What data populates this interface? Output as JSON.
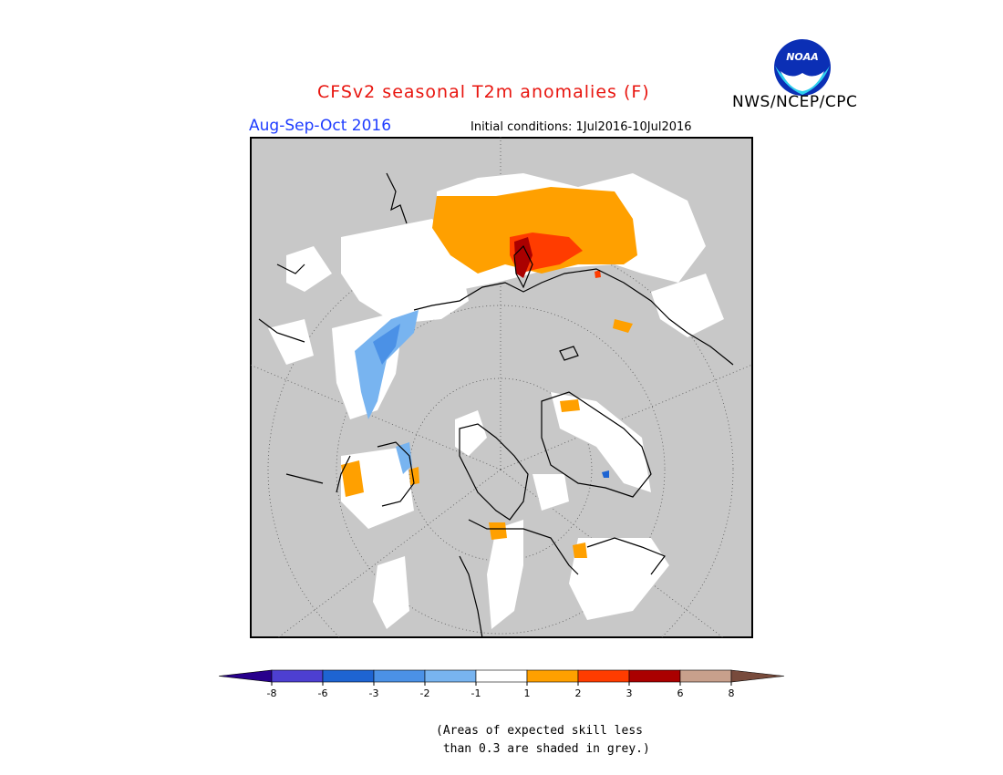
{
  "header": {
    "title": "CFSv2 seasonal T2m anomalies (F)",
    "period": "Aug-Sep-Oct 2016",
    "initial_conditions": "Initial conditions: 1Jul2016-10Jul2016",
    "agency": "NWS/NCEP/CPC",
    "logo_text": "NOAA"
  },
  "legend": {
    "bins": [
      {
        "color": "#28008c"
      },
      {
        "color": "#4d3fd1"
      },
      {
        "color": "#1e64d2"
      },
      {
        "color": "#4b91e6"
      },
      {
        "color": "#78b4f0"
      },
      {
        "color": "#ffffff"
      },
      {
        "color": "#ffa000"
      },
      {
        "color": "#ff3c00"
      },
      {
        "color": "#aa0000"
      },
      {
        "color": "#c8a08c"
      },
      {
        "color": "#784b3c"
      }
    ],
    "tick_labels": [
      "-8",
      "-6",
      "-3",
      "-2",
      "-1",
      "1",
      "2",
      "3",
      "6",
      "8"
    ]
  },
  "note": "(Areas of expected skill less\n than 0.3 are shaded in grey.)",
  "map": {
    "projection": "north polar stereographic",
    "grey_color": "#c8c8c8"
  }
}
